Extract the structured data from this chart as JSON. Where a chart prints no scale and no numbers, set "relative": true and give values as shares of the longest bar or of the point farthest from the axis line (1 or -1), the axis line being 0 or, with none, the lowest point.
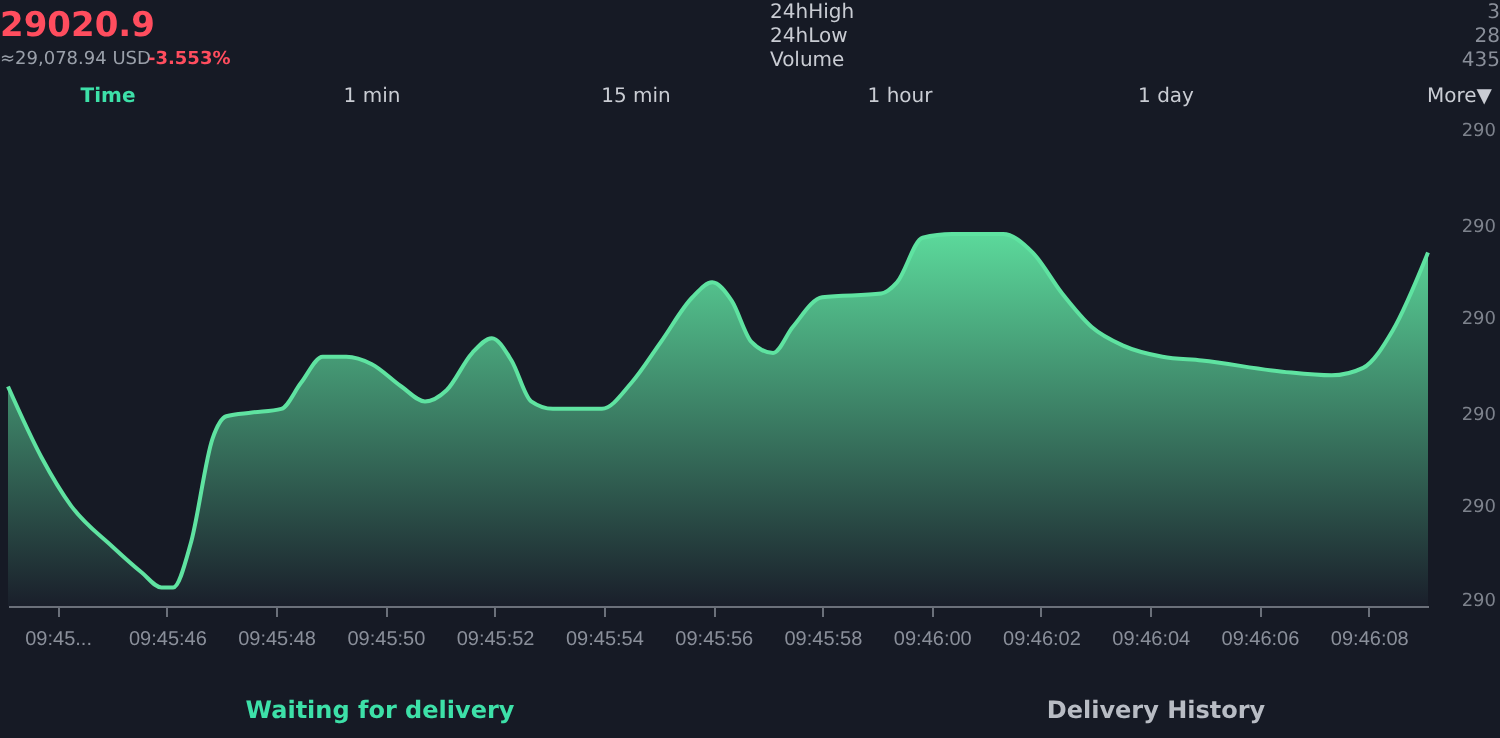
{
  "chart_data": {
    "type": "area",
    "title": "29020.9",
    "relative": true,
    "annotations": [
      "≈29,078.94 USD",
      "-3.553%",
      "24hHigh",
      "24hLow",
      "Volume",
      "3",
      "28",
      "435",
      "Time",
      "1 min",
      "15 min",
      "1 hour",
      "1 day",
      "More▼",
      "290",
      "290",
      "290",
      "290",
      "290",
      "290",
      "Waiting for delivery",
      "Delivery History"
    ],
    "x": [
      9.76197,
      9.76214,
      9.76229,
      9.7625,
      9.76265,
      9.76275,
      9.76281,
      9.7629,
      9.76301,
      9.76308,
      9.76321,
      9.76336,
      9.76346,
      9.76357,
      9.76369,
      9.76382,
      9.76397,
      9.76409,
      9.7642,
      9.76433,
      9.76443,
      9.76453,
      9.76463,
      9.76474,
      9.76499,
      9.76514,
      9.76529,
      9.76545,
      9.76555,
      9.76565,
      9.76575,
      9.76586,
      9.76596,
      9.76611,
      9.76641,
      9.76649,
      9.76662,
      9.76677,
      9.76703,
      9.76718,
      9.76733,
      9.76748,
      9.76764,
      9.76784,
      9.76804,
      9.76845,
      9.7687,
      9.76886,
      9.76901,
      9.76919
    ],
    "series": [
      {
        "color": "#5fe3a1",
        "values": [
          0.59,
          0.4,
          0.27,
          0.16,
          0.09,
          0.05,
          0.05,
          0.17,
          0.45,
          0.51,
          0.52,
          0.53,
          0.6,
          0.67,
          0.67,
          0.65,
          0.59,
          0.55,
          0.58,
          0.68,
          0.72,
          0.66,
          0.55,
          0.53,
          0.53,
          0.6,
          0.71,
          0.83,
          0.87,
          0.82,
          0.71,
          0.68,
          0.75,
          0.83,
          0.84,
          0.87,
          0.99,
          1,
          1,
          0.95,
          0.84,
          0.75,
          0.7,
          0.67,
          0.66,
          0.63,
          0.62,
          0.64,
          0.74,
          0.95
        ]
      }
    ],
    "xlim": [
      9.76197,
      9.76919
    ],
    "xticks": [
      {
        "value": 9.762222,
        "label": "09:45..."
      },
      {
        "value": 9.762778,
        "label": "09:45:46"
      },
      {
        "value": 9.763333,
        "label": "09:45:48"
      },
      {
        "value": 9.763889,
        "label": "09:45:50"
      },
      {
        "value": 9.764444,
        "label": "09:45:52"
      },
      {
        "value": 9.765,
        "label": "09:45:54"
      },
      {
        "value": 9.765556,
        "label": "09:45:56"
      },
      {
        "value": 9.766111,
        "label": "09:45:58"
      },
      {
        "value": 9.766667,
        "label": "09:46:00"
      },
      {
        "value": 9.767222,
        "label": "09:46:02"
      },
      {
        "value": 9.767778,
        "label": "09:46:04"
      },
      {
        "value": 9.768333,
        "label": "09:46:06"
      },
      {
        "value": 9.768889,
        "label": "09:46:08"
      }
    ]
  }
}
